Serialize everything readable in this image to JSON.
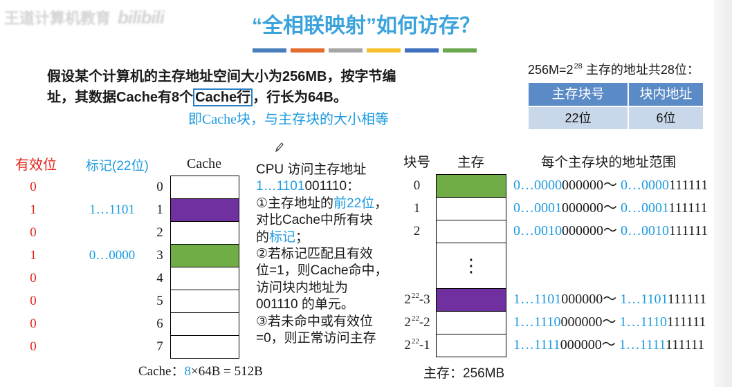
{
  "watermark": {
    "text": "王道计算机教育",
    "logo": "bilibili"
  },
  "title": "“全相联映射”如何访存？",
  "colors": {
    "title": "#3aa3dc",
    "highlight": "#1e9be0",
    "valid": "#e3231b",
    "box_border": "#2a7fc4",
    "table_header": "#5b8bc7",
    "table_cell": "#c9d7ea",
    "title_bars": [
      "#4a7ebb",
      "#e46c2e",
      "#a5a5a5",
      "#f5c02a",
      "#3f6fbf",
      "#6aa84f"
    ]
  },
  "intro": {
    "line1": "假设某个计算机的主存地址空间大小为256MB，按字节编",
    "line2_before": "址，其数据Cache有8个",
    "line2_boxed": "Cache行",
    "line2_after": "，行长为64B。",
    "note": "即Cache块，与主存块的大小相等"
  },
  "address_format": {
    "caption_base": "256M=2",
    "caption_exp": "28",
    "caption_rest": " 主存的地址共28位：",
    "headers": [
      "主存块号",
      "块内地址"
    ],
    "bits": [
      "22位",
      "6位"
    ]
  },
  "cache": {
    "valid_header": "有效位",
    "tag_header": "标记(22位)",
    "title": "Cache",
    "lines": [
      {
        "index": "0",
        "valid": "0",
        "fill": "#ffffff"
      },
      {
        "index": "1",
        "valid": "1",
        "tag": "1…1101",
        "fill": "#7030a0"
      },
      {
        "index": "2",
        "valid": "0",
        "fill": "#ffffff"
      },
      {
        "index": "3",
        "valid": "1",
        "tag": "0…0000",
        "fill": "#70ad47"
      },
      {
        "index": "4",
        "valid": "0",
        "fill": "#ffffff"
      },
      {
        "index": "5",
        "valid": "0",
        "fill": "#ffffff"
      },
      {
        "index": "6",
        "valid": "0",
        "fill": "#ffffff"
      },
      {
        "index": "7",
        "valid": "0",
        "fill": "#ffffff"
      }
    ],
    "summary_label": "Cache：",
    "summary_count": "8",
    "summary_rest": "×64B = 512B"
  },
  "explanation": [
    [
      "CPU 访问主存地址"
    ],
    [
      "1…1101",
      "001110："
    ],
    [
      "①主存地址的",
      "前22位",
      "，"
    ],
    [
      "对比Cache中所有块"
    ],
    [
      "的",
      "标记",
      "；"
    ],
    [
      "②若标记匹配且有效"
    ],
    [
      "位=1，则Cache命中，"
    ],
    [
      "访问块内地址为"
    ],
    [
      "001110 的单元。"
    ],
    [
      "③若未命中或有效位"
    ],
    [
      "=0，则正常访问主存"
    ]
  ],
  "memory": {
    "block_header": "块号",
    "title": "主存",
    "range_header": "每个主存块的地址范围",
    "range_sep": "～",
    "gap_symbol": "⋮",
    "rows": [
      {
        "block": {
          "base": "0"
        },
        "fill": "#70ad47",
        "start": [
          "0…0000",
          "000000"
        ],
        "end": [
          "0…0000",
          "111111"
        ]
      },
      {
        "block": {
          "base": "1"
        },
        "fill": "#ffffff",
        "start": [
          "0…0001",
          "000000"
        ],
        "end": [
          "0…0001",
          "111111"
        ]
      },
      {
        "block": {
          "base": "2"
        },
        "fill": "#ffffff",
        "start": [
          "0…0010",
          "000000"
        ],
        "end": [
          "0…0010",
          "111111"
        ]
      },
      {
        "block": {
          "base": "2",
          "exp": "22",
          "suffix": "-3"
        },
        "fill": "#7030a0",
        "start": [
          "1…1101",
          "000000"
        ],
        "end": [
          "1…1101",
          "111111"
        ]
      },
      {
        "block": {
          "base": "2",
          "exp": "22",
          "suffix": "-2"
        },
        "fill": "#ffffff",
        "start": [
          "1…1110",
          "000000"
        ],
        "end": [
          "1…1110",
          "111111"
        ]
      },
      {
        "block": {
          "base": "2",
          "exp": "22",
          "suffix": "-1"
        },
        "fill": "#ffffff",
        "start": [
          "1…1111",
          "000000"
        ],
        "end": [
          "1…1111",
          "111111"
        ]
      }
    ],
    "summary": "主存：256MB"
  }
}
